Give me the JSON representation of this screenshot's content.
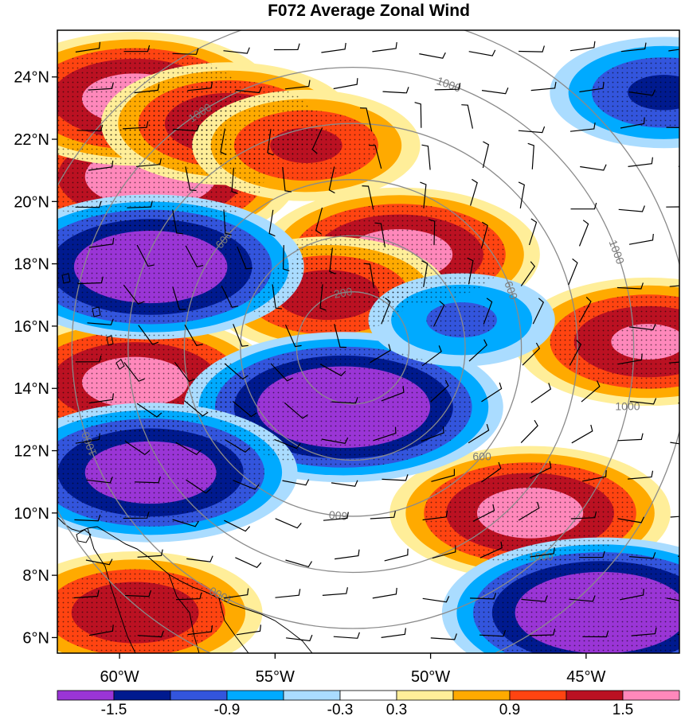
{
  "chart_data": {
    "type": "heatmap",
    "title": "F072 Average Zonal Wind",
    "lat_ticks": [
      "6°N",
      "8°N",
      "10°N",
      "12°N",
      "14°N",
      "16°N",
      "18°N",
      "20°N",
      "22°N",
      "24°N"
    ],
    "lat_values": [
      6,
      8,
      10,
      12,
      14,
      16,
      18,
      20,
      22,
      24
    ],
    "lon_ticks": [
      "60°W",
      "55°W",
      "50°W",
      "45°W"
    ],
    "lon_values": [
      -60,
      -55,
      -50,
      -45
    ],
    "lat_range": [
      5.5,
      25.5
    ],
    "lon_range": [
      -62,
      -42
    ],
    "colorbar": {
      "labels": [
        "-1.5",
        "-0.9",
        "-0.3",
        "0.3",
        "0.9",
        "1.5"
      ],
      "levels": [
        -1.8,
        -1.5,
        -1.2,
        -0.9,
        -0.6,
        -0.3,
        0.3,
        0.6,
        0.9,
        1.2,
        1.5,
        1.8
      ],
      "colors": [
        "#9a35d6",
        "#001a8f",
        "#3355dd",
        "#00aaff",
        "#aadcff",
        "#ffffff",
        "#ffee99",
        "#ffaa00",
        "#ff4411",
        "#bb1122",
        "#ff88bb"
      ]
    },
    "range_rings": {
      "center": [
        -52.5,
        15.3
      ],
      "labels": [
        "200",
        "600",
        "1000"
      ],
      "radii_km": [
        200,
        400,
        600,
        800,
        1000,
        1200
      ],
      "color": "#8a8a8a"
    },
    "features": [
      {
        "name": "positive band north",
        "sign": 1,
        "lon": -59,
        "lat": 20.8,
        "amp": 1.8
      },
      {
        "name": "positive max northwest",
        "sign": 1,
        "lon": -59.5,
        "lat": 23.3,
        "amp": 1.7
      },
      {
        "name": "positive max north",
        "sign": 1,
        "lon": -56.5,
        "lat": 22.5,
        "amp": 1.5
      },
      {
        "name": "positive band east",
        "sign": 1,
        "lon": -54,
        "lat": 21.8,
        "amp": 1.3
      },
      {
        "name": "positive max 18N",
        "sign": 1,
        "lon": -51,
        "lat": 18.3,
        "amp": 1.7
      },
      {
        "name": "positive 17N",
        "sign": 1,
        "lon": -53.3,
        "lat": 17,
        "amp": 1.4
      },
      {
        "name": "positive max 14N",
        "sign": 1,
        "lon": -59.5,
        "lat": 14.2,
        "amp": 1.7
      },
      {
        "name": "positive max 10N",
        "sign": 1,
        "lon": -46.8,
        "lat": 10,
        "amp": 1.7
      },
      {
        "name": "positive east edge",
        "sign": 1,
        "lon": -43,
        "lat": 15.5,
        "amp": 1.6
      },
      {
        "name": "positive max 6N",
        "sign": 1,
        "lon": -59.5,
        "lat": 6.8,
        "amp": 1.5
      },
      {
        "name": "negative max 18N",
        "sign": -1,
        "lon": -59,
        "lat": 17.9,
        "amp": 1.9
      },
      {
        "name": "negative max 13N",
        "sign": -1,
        "lon": -52.8,
        "lat": 13.4,
        "amp": 2
      },
      {
        "name": "negative band 11N",
        "sign": -1,
        "lon": -59,
        "lat": 11.3,
        "amp": 1.8
      },
      {
        "name": "negative max southeast",
        "sign": -1,
        "lon": -44.5,
        "lat": 6.8,
        "amp": 2
      },
      {
        "name": "negative 16N",
        "sign": -1,
        "lon": -49,
        "lat": 16.2,
        "amp": 1
      },
      {
        "name": "negative northeast",
        "sign": -1,
        "lon": -42.5,
        "lat": 23.5,
        "amp": 1.3
      }
    ]
  }
}
